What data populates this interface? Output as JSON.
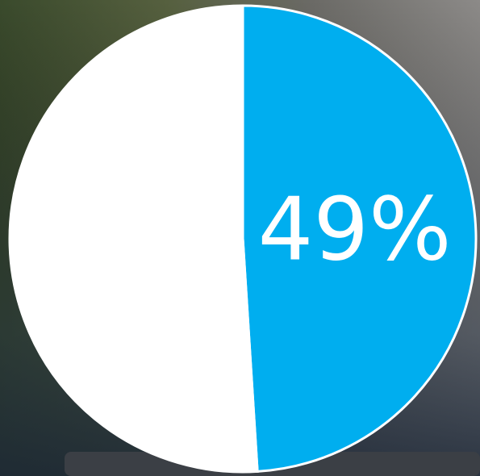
{
  "chart_data": {
    "type": "pie",
    "values": [
      49,
      51
    ],
    "value_labels": [
      "49%",
      null
    ],
    "colors": [
      "#00aeef",
      "#ffffff"
    ],
    "start_angle": 0,
    "direction": "clockwise"
  }
}
